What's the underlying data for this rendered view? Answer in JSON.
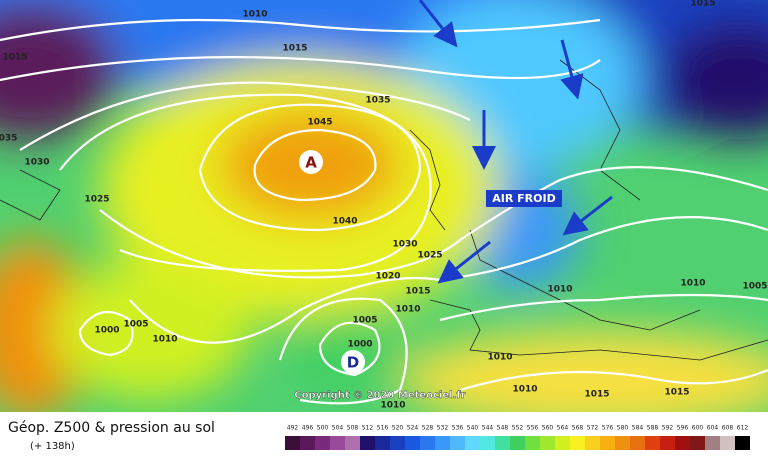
{
  "map": {
    "title": "Géop. Z500 & pression au sol",
    "subtitle": "(+ 138h)",
    "high_label": "A",
    "low_label": "D",
    "annotation": "AIR FROID",
    "copyright": "Copyright © 2020 Meteociel.fr",
    "isobar_labels": [
      "1010",
      "1015",
      "1015",
      "1035",
      "1045",
      "035",
      "1030",
      "1025",
      "1040",
      "1030",
      "1025",
      "1020",
      "1015",
      "1010",
      "1010",
      "1010",
      "1005",
      "1005",
      "1000",
      "1010",
      "1005",
      "1000",
      "1010",
      "1010",
      "1015",
      "1015",
      "1010",
      "1015"
    ]
  },
  "legend": {
    "scale": [
      492,
      496,
      500,
      504,
      508,
      512,
      516,
      520,
      524,
      528,
      532,
      536,
      540,
      544,
      548,
      552,
      556,
      560,
      564,
      568,
      572,
      576,
      580,
      584,
      588,
      592,
      596,
      600,
      604,
      608,
      612
    ],
    "colors": [
      "#3b0f3a",
      "#5a1a5a",
      "#7a2a7a",
      "#9a4a9a",
      "#b070b0",
      "#20106a",
      "#1a2a9a",
      "#1a40c0",
      "#1a5ae0",
      "#2a78f0",
      "#3a98f8",
      "#50b8ff",
      "#60d8ff",
      "#50e8e0",
      "#40e0a0",
      "#40d060",
      "#70e040",
      "#a0e830",
      "#d0f020",
      "#f8f020",
      "#f8d020",
      "#f8b010",
      "#f09010",
      "#e87010",
      "#e04010",
      "#c82010",
      "#a01010",
      "#801818",
      "#a08080",
      "#d0c0c0",
      "#000000"
    ]
  }
}
